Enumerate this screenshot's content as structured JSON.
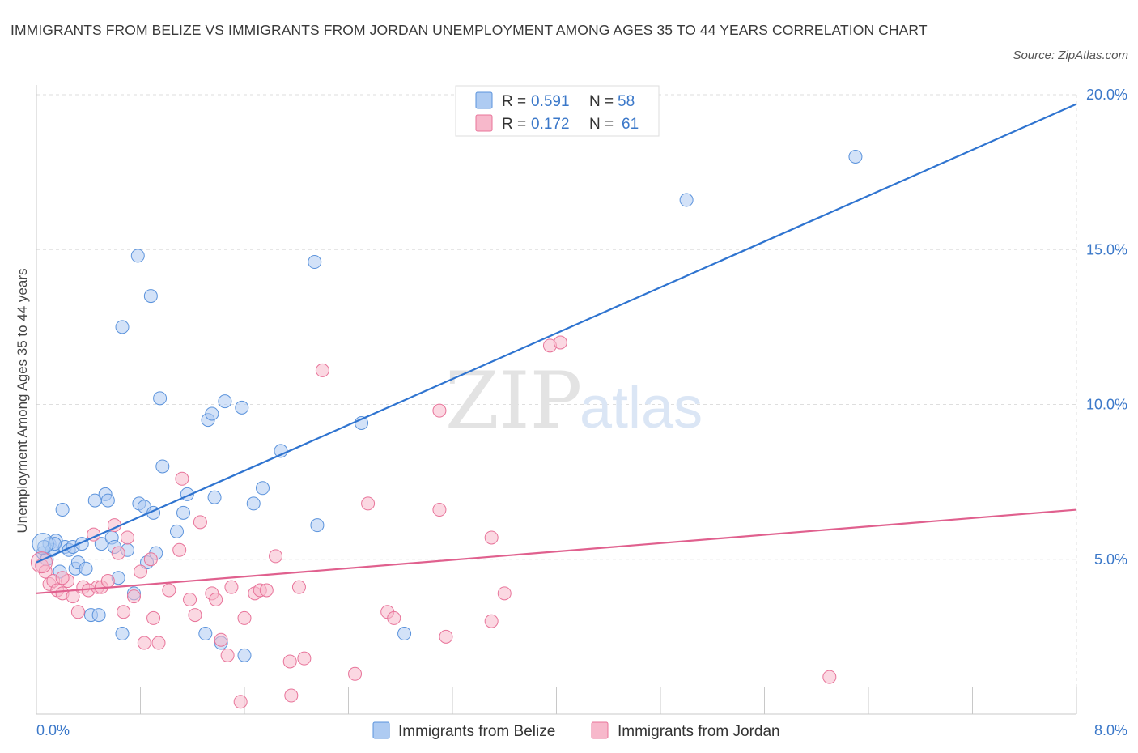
{
  "header": {
    "title": "IMMIGRANTS FROM BELIZE VS IMMIGRANTS FROM JORDAN UNEMPLOYMENT AMONG AGES 35 TO 44 YEARS CORRELATION CHART",
    "source": "Source: ZipAtlas.com"
  },
  "watermark": {
    "zip": "ZIP",
    "atlas": "atlas"
  },
  "legend_top": {
    "rows": [
      {
        "r_label": "R = ",
        "r_value": "0.591",
        "n_label": "N = ",
        "n_value": "58",
        "color": "#aecbf2"
      },
      {
        "r_label": "R = ",
        "r_value": "0.172",
        "n_label": "N = ",
        "n_value": "61",
        "color": "#f7b8cb"
      }
    ]
  },
  "legend_bottom": {
    "items": [
      {
        "label": "Immigrants from Belize",
        "color": "#aecbf2"
      },
      {
        "label": "Immigrants from Jordan",
        "color": "#f7b8cb"
      }
    ]
  },
  "chart_data": {
    "type": "scatter",
    "ylabel": "Unemployment Among Ages 35 to 44 years",
    "xlim": [
      0,
      8
    ],
    "ylim": [
      0,
      20
    ],
    "x_tick_labels": [
      {
        "value": 0,
        "label": "0.0%"
      },
      {
        "value": 8,
        "label": "8.0%"
      }
    ],
    "y_tick_labels": [
      {
        "value": 5,
        "label": "5.0%"
      },
      {
        "value": 10,
        "label": "10.0%"
      },
      {
        "value": 15,
        "label": "15.0%"
      },
      {
        "value": 20,
        "label": "20.0%"
      }
    ],
    "grid": true,
    "series": [
      {
        "name": "Immigrants from Belize",
        "color": "#5b93dc",
        "fill": "#aecbf2",
        "trend": {
          "x": [
            0.0,
            8.0
          ],
          "y": [
            4.9,
            19.7
          ],
          "color": "#2f74d0"
        },
        "points": [
          [
            0.05,
            5.2
          ],
          [
            0.08,
            5.0
          ],
          [
            0.1,
            5.5
          ],
          [
            0.12,
            5.3
          ],
          [
            0.15,
            5.6
          ],
          [
            0.18,
            4.6
          ],
          [
            0.2,
            6.6
          ],
          [
            0.22,
            5.4
          ],
          [
            0.25,
            5.3
          ],
          [
            0.28,
            5.4
          ],
          [
            0.3,
            4.7
          ],
          [
            0.32,
            4.9
          ],
          [
            0.35,
            5.5
          ],
          [
            0.38,
            4.7
          ],
          [
            0.42,
            3.2
          ],
          [
            0.45,
            6.9
          ],
          [
            0.48,
            3.2
          ],
          [
            0.5,
            5.5
          ],
          [
            0.53,
            7.1
          ],
          [
            0.55,
            6.9
          ],
          [
            0.58,
            5.7
          ],
          [
            0.6,
            5.4
          ],
          [
            0.63,
            4.4
          ],
          [
            0.66,
            12.5
          ],
          [
            0.66,
            2.6
          ],
          [
            0.7,
            5.3
          ],
          [
            0.75,
            3.9
          ],
          [
            0.78,
            14.8
          ],
          [
            0.79,
            6.8
          ],
          [
            0.83,
            6.7
          ],
          [
            0.85,
            4.9
          ],
          [
            0.88,
            13.5
          ],
          [
            0.9,
            6.5
          ],
          [
            0.92,
            5.2
          ],
          [
            0.95,
            10.2
          ],
          [
            0.97,
            8.0
          ],
          [
            1.08,
            5.9
          ],
          [
            1.13,
            6.5
          ],
          [
            1.16,
            7.1
          ],
          [
            1.3,
            2.6
          ],
          [
            1.32,
            9.5
          ],
          [
            1.35,
            9.7
          ],
          [
            1.37,
            7.0
          ],
          [
            1.42,
            2.3
          ],
          [
            1.45,
            10.1
          ],
          [
            1.58,
            9.9
          ],
          [
            1.6,
            1.9
          ],
          [
            1.67,
            6.8
          ],
          [
            1.74,
            7.3
          ],
          [
            1.88,
            8.5
          ],
          [
            2.14,
            14.6
          ],
          [
            2.16,
            6.1
          ],
          [
            2.5,
            9.4
          ],
          [
            2.83,
            2.6
          ],
          [
            5.0,
            16.6
          ],
          [
            6.3,
            18.0
          ],
          [
            0.06,
            5.4
          ],
          [
            0.14,
            5.5
          ]
        ]
      },
      {
        "name": "Immigrants from Jordan",
        "color": "#e8749a",
        "fill": "#f7b8cb",
        "trend": {
          "x": [
            0.0,
            8.0
          ],
          "y": [
            3.9,
            6.6
          ],
          "color": "#e0608e"
        },
        "points": [
          [
            0.04,
            4.8
          ],
          [
            0.07,
            4.6
          ],
          [
            0.1,
            4.2
          ],
          [
            0.13,
            4.3
          ],
          [
            0.16,
            4.0
          ],
          [
            0.2,
            3.9
          ],
          [
            0.24,
            4.3
          ],
          [
            0.28,
            3.8
          ],
          [
            0.32,
            3.3
          ],
          [
            0.36,
            4.1
          ],
          [
            0.4,
            4.0
          ],
          [
            0.44,
            5.8
          ],
          [
            0.47,
            4.1
          ],
          [
            0.5,
            4.1
          ],
          [
            0.55,
            4.3
          ],
          [
            0.6,
            6.1
          ],
          [
            0.63,
            5.2
          ],
          [
            0.67,
            3.3
          ],
          [
            0.7,
            5.7
          ],
          [
            0.75,
            3.8
          ],
          [
            0.8,
            4.6
          ],
          [
            0.83,
            2.3
          ],
          [
            0.88,
            5.0
          ],
          [
            0.9,
            3.1
          ],
          [
            0.94,
            2.3
          ],
          [
            1.02,
            4.0
          ],
          [
            1.1,
            5.3
          ],
          [
            1.12,
            7.6
          ],
          [
            1.18,
            3.7
          ],
          [
            1.22,
            3.2
          ],
          [
            1.26,
            6.2
          ],
          [
            1.35,
            3.9
          ],
          [
            1.38,
            3.7
          ],
          [
            1.42,
            2.4
          ],
          [
            1.47,
            1.9
          ],
          [
            1.5,
            4.1
          ],
          [
            1.57,
            0.4
          ],
          [
            1.6,
            3.1
          ],
          [
            1.68,
            3.9
          ],
          [
            1.72,
            4.0
          ],
          [
            1.77,
            4.0
          ],
          [
            1.84,
            5.1
          ],
          [
            1.95,
            1.7
          ],
          [
            1.96,
            0.6
          ],
          [
            2.02,
            4.1
          ],
          [
            2.06,
            1.8
          ],
          [
            2.2,
            11.1
          ],
          [
            2.45,
            1.3
          ],
          [
            2.55,
            6.8
          ],
          [
            2.7,
            3.3
          ],
          [
            2.75,
            3.1
          ],
          [
            3.1,
            9.8
          ],
          [
            3.1,
            6.6
          ],
          [
            3.15,
            2.5
          ],
          [
            3.5,
            5.7
          ],
          [
            3.5,
            3.0
          ],
          [
            3.6,
            3.9
          ],
          [
            3.95,
            11.9
          ],
          [
            4.03,
            12.0
          ],
          [
            6.1,
            1.2
          ],
          [
            0.2,
            4.4
          ]
        ]
      }
    ]
  }
}
